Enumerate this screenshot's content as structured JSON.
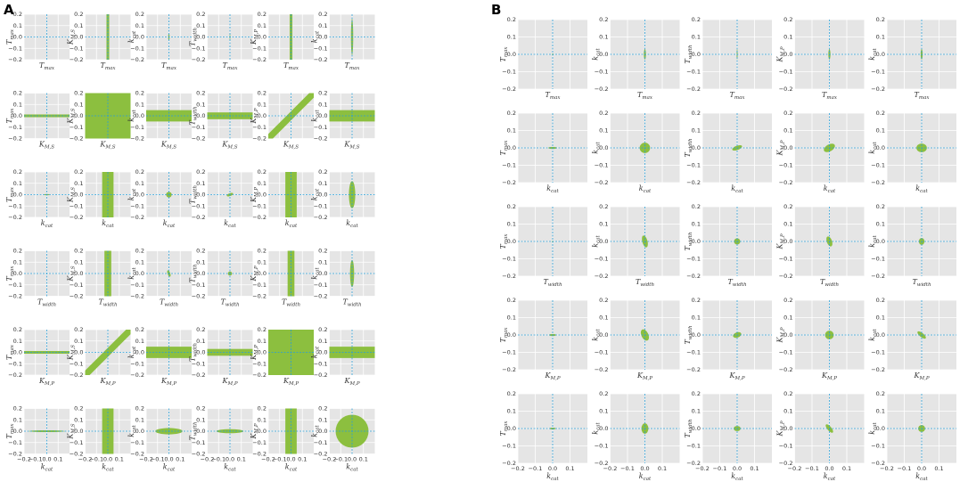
{
  "figure": {
    "panel_labels": [
      "A",
      "B"
    ]
  },
  "chart_data": [
    {
      "type": "scatter",
      "panel": "A",
      "description_of_marks": "pairwise confidence ellipses / bands (green) around origin",
      "grid": true,
      "xlim": [
        -0.2,
        0.2
      ],
      "ylim": [
        -0.2,
        0.2
      ],
      "xticks": [
        -0.2,
        -0.1,
        0.0,
        0.1
      ],
      "yticks": [
        -0.2,
        -0.1,
        0.0,
        0.1,
        0.2
      ],
      "tick_labels_x": [
        "−0.2",
        "−0.1",
        "0.0",
        "0.1"
      ],
      "tick_labels_y": [
        "−0.2",
        "−0.1",
        "0.0",
        "0.1",
        "0.2"
      ],
      "row_xlabels": [
        "Tmax",
        "KM,S",
        "kcat",
        "Twidth",
        "KM,P",
        "kcat"
      ],
      "col_ylabels": [
        "Tmax",
        "KM,S",
        "kcat",
        "Twidth",
        "KM,P",
        "kcat"
      ],
      "reference_lines": {
        "x": 0,
        "y": 0,
        "color": "#2a9fd6"
      },
      "mark_color": "#8cbf3f",
      "cells": [
        [
          {
            "s": "e",
            "rx": 0.004,
            "ry": 0.006,
            "a": 0
          },
          {
            "s": "v",
            "w": 0.012
          },
          {
            "s": "e",
            "rx": 0.006,
            "ry": 0.03,
            "a": 0
          },
          {
            "s": "e",
            "rx": 0.003,
            "ry": 0.03,
            "a": 0
          },
          {
            "s": "v",
            "w": 0.012
          },
          {
            "s": "e",
            "rx": 0.01,
            "ry": 0.16,
            "a": 0
          }
        ],
        [
          {
            "s": "h",
            "w": 0.012
          },
          {
            "s": "f"
          },
          {
            "s": "h",
            "w": 0.05
          },
          {
            "s": "h",
            "w": 0.03
          },
          {
            "s": "d",
            "w": 0.04
          },
          {
            "s": "h",
            "w": 0.05
          }
        ],
        [
          {
            "s": "e",
            "rx": 0.025,
            "ry": 0.006,
            "a": 0
          },
          {
            "s": "v",
            "w": 0.05
          },
          {
            "s": "e",
            "rx": 0.025,
            "ry": 0.025,
            "a": 0
          },
          {
            "s": "e",
            "rx": 0.03,
            "ry": 0.012,
            "a": 20
          },
          {
            "s": "v",
            "w": 0.05
          },
          {
            "s": "e",
            "rx": 0.028,
            "ry": 0.12,
            "a": 0
          }
        ],
        [
          {
            "s": "e",
            "rx": 0.006,
            "ry": 0.003,
            "a": 0
          },
          {
            "s": "v",
            "w": 0.03
          },
          {
            "s": "e",
            "rx": 0.012,
            "ry": 0.03,
            "a": 20
          },
          {
            "s": "e",
            "rx": 0.018,
            "ry": 0.018,
            "a": 0
          },
          {
            "s": "v",
            "w": 0.03
          },
          {
            "s": "e",
            "rx": 0.018,
            "ry": 0.12,
            "a": 0
          }
        ],
        [
          {
            "s": "h",
            "w": 0.012
          },
          {
            "s": "d",
            "w": 0.04
          },
          {
            "s": "h",
            "w": 0.05
          },
          {
            "s": "h",
            "w": 0.03
          },
          {
            "s": "f"
          },
          {
            "s": "h",
            "w": 0.05
          }
        ],
        [
          {
            "s": "e",
            "rx": 0.16,
            "ry": 0.008,
            "a": 0
          },
          {
            "s": "v",
            "w": 0.05
          },
          {
            "s": "e",
            "rx": 0.12,
            "ry": 0.028,
            "a": 0
          },
          {
            "s": "e",
            "rx": 0.12,
            "ry": 0.018,
            "a": 0
          },
          {
            "s": "v",
            "w": 0.05
          },
          {
            "s": "e",
            "rx": 0.145,
            "ry": 0.145,
            "a": 0
          }
        ]
      ]
    },
    {
      "type": "scatter",
      "panel": "B",
      "description_of_marks": "pairwise confidence ellipses (green) around origin",
      "grid": true,
      "xlim": [
        -0.2,
        0.2
      ],
      "ylim": [
        -0.2,
        0.2
      ],
      "xticks": [
        -0.2,
        -0.1,
        0.0,
        0.1
      ],
      "yticks": [
        -0.2,
        -0.1,
        0.0,
        0.1,
        0.2
      ],
      "tick_labels_x": [
        "−0.2",
        "−0.1",
        "0.0",
        "0.1"
      ],
      "tick_labels_y": [
        "−0.2",
        "−0.1",
        "0.0",
        "0.1",
        "0.2"
      ],
      "row_xlabels": [
        "Tmax",
        "kcat",
        "Twidth",
        "KM,P",
        "kcat"
      ],
      "col_ylabels": [
        "Tmax",
        "kcat",
        "Twidth",
        "KM,P",
        "kcat"
      ],
      "reference_lines": {
        "x": 0,
        "y": 0,
        "color": "#2a9fd6"
      },
      "mark_color": "#8cbf3f",
      "cells": [
        [
          {
            "s": "e",
            "rx": 0.004,
            "ry": 0.006,
            "a": 0
          },
          {
            "s": "e",
            "rx": 0.006,
            "ry": 0.03,
            "a": 0
          },
          {
            "s": "e",
            "rx": 0.003,
            "ry": 0.03,
            "a": 0
          },
          {
            "s": "e",
            "rx": 0.006,
            "ry": 0.03,
            "a": 0
          },
          {
            "s": "e",
            "rx": 0.006,
            "ry": 0.03,
            "a": 0
          }
        ],
        [
          {
            "s": "e",
            "rx": 0.025,
            "ry": 0.006,
            "a": 0
          },
          {
            "s": "e",
            "rx": 0.03,
            "ry": 0.03,
            "a": 0
          },
          {
            "s": "e",
            "rx": 0.03,
            "ry": 0.012,
            "a": 20
          },
          {
            "s": "e",
            "rx": 0.035,
            "ry": 0.02,
            "a": 30
          },
          {
            "s": "e",
            "rx": 0.03,
            "ry": 0.025,
            "a": 0
          }
        ],
        [
          {
            "s": "e",
            "rx": 0.006,
            "ry": 0.003,
            "a": 0
          },
          {
            "s": "e",
            "rx": 0.015,
            "ry": 0.035,
            "a": 15
          },
          {
            "s": "e",
            "rx": 0.018,
            "ry": 0.018,
            "a": 0
          },
          {
            "s": "e",
            "rx": 0.015,
            "ry": 0.03,
            "a": 20
          },
          {
            "s": "e",
            "rx": 0.016,
            "ry": 0.02,
            "a": 0
          }
        ],
        [
          {
            "s": "e",
            "rx": 0.02,
            "ry": 0.006,
            "a": 0
          },
          {
            "s": "e",
            "rx": 0.02,
            "ry": 0.035,
            "a": 25
          },
          {
            "s": "e",
            "rx": 0.025,
            "ry": 0.015,
            "a": 20
          },
          {
            "s": "e",
            "rx": 0.025,
            "ry": 0.025,
            "a": 0
          },
          {
            "s": "e",
            "rx": 0.03,
            "ry": 0.012,
            "a": -40
          }
        ],
        [
          {
            "s": "e",
            "rx": 0.018,
            "ry": 0.005,
            "a": 0
          },
          {
            "s": "e",
            "rx": 0.02,
            "ry": 0.03,
            "a": 0
          },
          {
            "s": "e",
            "rx": 0.02,
            "ry": 0.015,
            "a": 0
          },
          {
            "s": "e",
            "rx": 0.03,
            "ry": 0.012,
            "a": -50
          },
          {
            "s": "e",
            "rx": 0.02,
            "ry": 0.02,
            "a": 0
          }
        ]
      ]
    }
  ]
}
